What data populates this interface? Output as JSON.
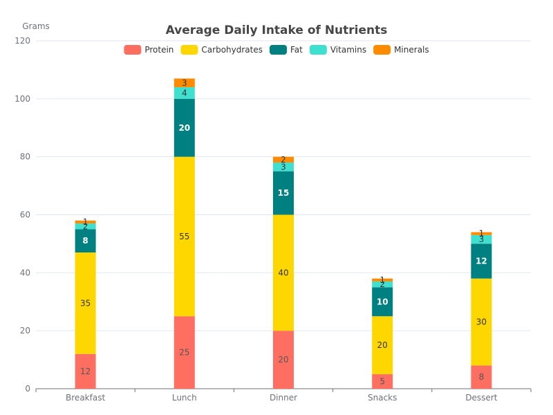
{
  "chart_data": {
    "type": "bar",
    "stacked": true,
    "title": "Average Daily Intake of Nutrients",
    "ylabel": "Grams",
    "xlabel": "",
    "ylim": [
      0,
      120
    ],
    "yticks": [
      0,
      20,
      40,
      60,
      80,
      100,
      120
    ],
    "grid": true,
    "legend_position": "top-center",
    "categories": [
      "Breakfast",
      "Lunch",
      "Dinner",
      "Snacks",
      "Dessert"
    ],
    "series": [
      {
        "name": "Protein",
        "color": "#ff6f61",
        "label_color": "#555555",
        "values": [
          12,
          25,
          20,
          5,
          8
        ]
      },
      {
        "name": "Carbohydrates",
        "color": "#ffd700",
        "label_color": "#333333",
        "values": [
          35,
          55,
          40,
          20,
          30
        ]
      },
      {
        "name": "Fat",
        "color": "#008080",
        "label_color": "#ffffff",
        "label_bold": true,
        "values": [
          8,
          20,
          15,
          10,
          12
        ]
      },
      {
        "name": "Vitamins",
        "color": "#40e0d0",
        "label_color": "#333333",
        "values": [
          2,
          4,
          3,
          2,
          3
        ]
      },
      {
        "name": "Minerals",
        "color": "#ff8c00",
        "label_color": "#333333",
        "values": [
          1,
          3,
          2,
          1,
          1
        ]
      }
    ]
  }
}
